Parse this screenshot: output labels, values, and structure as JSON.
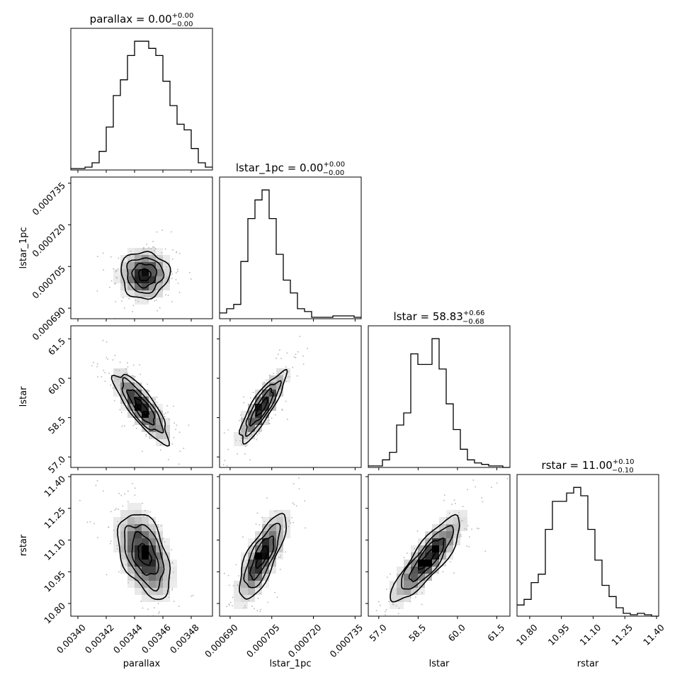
{
  "chart_data": {
    "type": "corner",
    "parameters": [
      {
        "name": "parallax",
        "title": {
          "lhs": "parallax = ",
          "value": "0.00",
          "plus": "+0.00",
          "minus": "−0.00"
        },
        "range": [
          0.003395,
          0.003495
        ],
        "ticks": [
          0.0034,
          0.00342,
          0.00344,
          0.00346,
          0.00348
        ],
        "tick_labels": [
          "0.00340",
          "0.00342",
          "0.00344",
          "0.00346",
          "0.00348"
        ],
        "hist": [
          1,
          1,
          2,
          5,
          13,
          30,
          52,
          63,
          80,
          90,
          90,
          85,
          80,
          62,
          45,
          32,
          28,
          15,
          5,
          2
        ]
      },
      {
        "name": "lstar_1pc",
        "title": {
          "lhs": "lstar_1pc = ",
          "value": "0.00",
          "plus": "+0.00",
          "minus": "−0.00"
        },
        "range": [
          0.0006862,
          0.0007372
        ],
        "ticks": [
          0.00069,
          0.000705,
          0.00072,
          0.000735
        ],
        "tick_labels": [
          "0.000690",
          "0.000705",
          "0.000720",
          "0.000735"
        ],
        "hist": [
          4,
          7,
          10,
          40,
          70,
          83,
          90,
          70,
          45,
          27,
          18,
          7,
          5,
          1,
          1,
          1,
          2,
          2,
          2,
          1
        ]
      },
      {
        "name": "lstar",
        "title": {
          "lhs": "lstar = ",
          "value": "58.83",
          "plus": "+0.66",
          "minus": "−0.68"
        },
        "range": [
          56.6,
          62.0
        ],
        "ticks": [
          57.0,
          58.5,
          60.0,
          61.5
        ],
        "tick_labels": [
          "57.0",
          "58.5",
          "60.0",
          "61.5"
        ],
        "hist": [
          1,
          1,
          5,
          10,
          28,
          36,
          75,
          68,
          68,
          85,
          65,
          42,
          25,
          12,
          5,
          3,
          2,
          1,
          1,
          0
        ]
      },
      {
        "name": "rstar",
        "title": {
          "lhs": "rstar = ",
          "value": "11.00",
          "plus": "+0.10",
          "minus": "−0.10"
        },
        "range": [
          10.74,
          11.41
        ],
        "ticks": [
          10.8,
          10.95,
          11.1,
          11.25,
          11.4
        ],
        "tick_labels": [
          "10.80",
          "10.95",
          "11.10",
          "11.25",
          "11.40"
        ],
        "hist": [
          8,
          12,
          24,
          30,
          62,
          82,
          82,
          88,
          92,
          86,
          62,
          40,
          22,
          14,
          6,
          2,
          1,
          2,
          1,
          0
        ]
      }
    ],
    "pairs": [
      {
        "x": "parallax",
        "y": "lstar_1pc",
        "center": [
          0.003447,
          0.000702
        ],
        "sigma": [
          8.5e-06,
          4.2e-06
        ],
        "rho": 0.0
      },
      {
        "x": "parallax",
        "y": "lstar",
        "center": [
          0.003445,
          58.9
        ],
        "sigma": [
          9.5e-06,
          0.66
        ],
        "rho": -0.82
      },
      {
        "x": "lstar_1pc",
        "y": "lstar",
        "center": [
          0.0007015,
          58.9
        ],
        "sigma": [
          4.1e-06,
          0.66
        ],
        "rho": 0.85
      },
      {
        "x": "parallax",
        "y": "rstar",
        "center": [
          0.003447,
          11.03
        ],
        "sigma": [
          9.2e-06,
          0.1
        ],
        "rho": -0.45
      },
      {
        "x": "lstar_1pc",
        "y": "rstar",
        "center": [
          0.0007015,
          11.02
        ],
        "sigma": [
          4.2e-06,
          0.1
        ],
        "rho": 0.75
      },
      {
        "x": "lstar",
        "y": "rstar",
        "center": [
          58.85,
          11.01
        ],
        "sigma": [
          0.66,
          0.1
        ],
        "rho": 0.85
      }
    ]
  }
}
